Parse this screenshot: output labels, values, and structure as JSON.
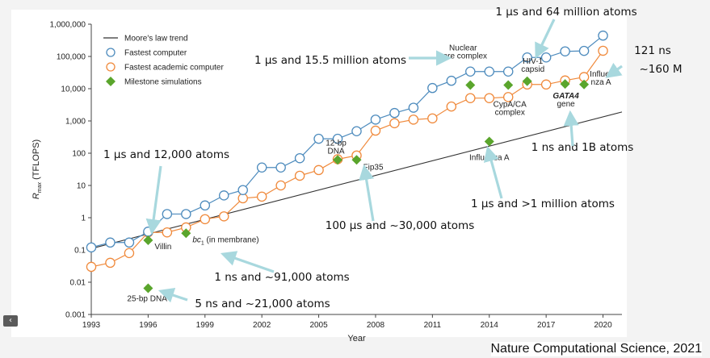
{
  "source_caption": "Nature Computational Science, 2021",
  "nav": {
    "prev_icon": "chevron-left-icon",
    "prev_glyph": "‹"
  },
  "colors": {
    "moore": "#333333",
    "fastest": "#4d8bbd",
    "academic": "#f08a3c",
    "milestone": "#5aa52c",
    "callout_arrow": "#a8d8de"
  },
  "chart_data": {
    "type": "line",
    "xlabel": "Year",
    "ylabel_main": "R",
    "ylabel_sub": "max",
    "ylabel_unit": "(TFLOPS)",
    "log_y": true,
    "xlim": [
      1993,
      2021
    ],
    "ylim": [
      0.001,
      1000000
    ],
    "x_ticks": [
      "1993",
      "1996",
      "1999",
      "2002",
      "2005",
      "2008",
      "2011",
      "2014",
      "2017",
      "2020"
    ],
    "y_ticks": [
      "0.001",
      "0.01",
      "0.1",
      "1",
      "10",
      "100",
      "1,000",
      "10,000",
      "100,000",
      "1,000,000"
    ],
    "legend_position": "top-left",
    "series": [
      {
        "name": "Moore's law trend",
        "kind": "trend",
        "points": [
          [
            1993,
            0.11
          ],
          [
            2021,
            1900
          ]
        ]
      },
      {
        "name": "Fastest computer",
        "kind": "hollow",
        "x": [
          1993,
          1994,
          1995,
          1996,
          1997,
          1998,
          1999,
          2000,
          2001,
          2002,
          2003,
          2004,
          2005,
          2006,
          2007,
          2008,
          2009,
          2010,
          2011,
          2012,
          2013,
          2014,
          2015,
          2016,
          2017,
          2018,
          2019,
          2020
        ],
        "values": [
          0.12,
          0.17,
          0.17,
          0.37,
          1.3,
          1.3,
          2.4,
          4.9,
          7.2,
          36,
          36,
          70,
          280,
          280,
          480,
          1100,
          1760,
          2570,
          10500,
          17600,
          34000,
          34000,
          34000,
          93000,
          93000,
          143500,
          148600,
          442000
        ]
      },
      {
        "name": "Fastest academic computer",
        "kind": "hollow",
        "x": [
          1993,
          1994,
          1995,
          1996,
          1997,
          1998,
          1999,
          2000,
          2001,
          2002,
          2003,
          2004,
          2005,
          2006,
          2007,
          2008,
          2009,
          2010,
          2011,
          2012,
          2013,
          2014,
          2015,
          2016,
          2017,
          2018,
          2019,
          2020
        ],
        "values": [
          0.03,
          0.04,
          0.08,
          0.35,
          0.35,
          0.5,
          0.9,
          1.1,
          4,
          4.5,
          10,
          20,
          30,
          65,
          85,
          500,
          850,
          1100,
          1200,
          2800,
          5100,
          5100,
          5500,
          13500,
          13500,
          18000,
          23000,
          150000
        ]
      },
      {
        "name": "Milestone simulations",
        "kind": "diamond",
        "x": [
          1996,
          1996,
          1998,
          2006,
          2007,
          2013,
          2014,
          2015,
          2016,
          2018,
          2019
        ],
        "values": [
          0.2,
          0.0065,
          0.33,
          62,
          62,
          13000,
          230,
          13000,
          17000,
          14000,
          13500
        ]
      }
    ],
    "annotations": [
      {
        "text": "25-bp DNA",
        "x": 1996,
        "y": 0.0065
      },
      {
        "text": "Villin",
        "x": 1996,
        "y": 0.2
      },
      {
        "text": "(in membrane)",
        "prefix": "bc",
        "sub": "1",
        "x": 1998,
        "y": 0.33
      },
      {
        "text": "12-bp",
        "line2": "DNA",
        "x": 2006,
        "y": 62
      },
      {
        "text": "Fip35",
        "x": 2007,
        "y": 62
      },
      {
        "text": "Nuclear",
        "line2": "core complex",
        "x": 2013,
        "y": 13000
      },
      {
        "text": "Influenza A",
        "x": 2014,
        "y": 230
      },
      {
        "text": "CypA/CA",
        "line2": "complex",
        "x": 2015,
        "y": 13000
      },
      {
        "text": "HIV-1",
        "line2": "capsid",
        "x": 2016,
        "y": 17000
      },
      {
        "text": "GATA4",
        "line2": "gene",
        "x": 2018,
        "y": 14000
      },
      {
        "text": "Influe-",
        "line2": "nza A",
        "x": 2019,
        "y": 13500
      }
    ],
    "callouts": [
      {
        "text": "1 µs and 64 million atoms"
      },
      {
        "text": "1 µs and 15.5 million atoms"
      },
      {
        "text": "121 ns"
      },
      {
        "text": "~160 M"
      },
      {
        "text": "1 ns and 1B atoms"
      },
      {
        "text": "1 µs and 12,000 atoms"
      },
      {
        "text": "1 µs and >1 million atoms"
      },
      {
        "text": "100 µs and ~30,000 atoms"
      },
      {
        "text": "1 ns and ~91,000 atoms"
      },
      {
        "text": "5 ns and ~21,000 atoms"
      }
    ]
  }
}
